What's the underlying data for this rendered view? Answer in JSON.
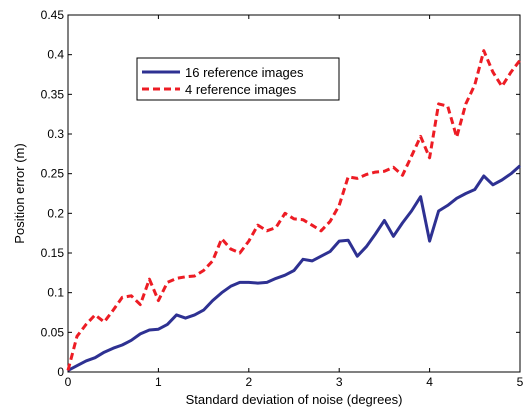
{
  "chart_data": {
    "type": "line",
    "title": "",
    "xlabel": "Standard deviation of noise (degrees)",
    "ylabel": "Position error (m)",
    "xlim": [
      0,
      5
    ],
    "ylim": [
      0,
      0.45
    ],
    "xticks": [
      0,
      1,
      2,
      3,
      4,
      5
    ],
    "xtick_labels": [
      "0",
      "1",
      "2",
      "3",
      "4",
      "5"
    ],
    "yticks": [
      0,
      0.05,
      0.1,
      0.15,
      0.2,
      0.25,
      0.3,
      0.35,
      0.4,
      0.45
    ],
    "ytick_labels": [
      "0",
      "0.05",
      "0.1",
      "0.15",
      "0.2",
      "0.25",
      "0.3",
      "0.35",
      "0.4",
      "0.45"
    ],
    "grid": false,
    "legend_position": "upper-left",
    "x": [
      0,
      0.1,
      0.2,
      0.3,
      0.4,
      0.5,
      0.6,
      0.7,
      0.8,
      0.9,
      1.0,
      1.1,
      1.2,
      1.3,
      1.4,
      1.5,
      1.6,
      1.7,
      1.8,
      1.9,
      2.0,
      2.1,
      2.2,
      2.3,
      2.4,
      2.5,
      2.6,
      2.7,
      2.8,
      2.9,
      3.0,
      3.1,
      3.2,
      3.3,
      3.4,
      3.5,
      3.6,
      3.7,
      3.8,
      3.9,
      4.0,
      4.1,
      4.2,
      4.3,
      4.4,
      4.5,
      4.6,
      4.7,
      4.8,
      4.9,
      5.0
    ],
    "series": [
      {
        "name": "16 reference images",
        "color": "#2e3192",
        "style": "solid",
        "values": [
          0.002,
          0.008,
          0.014,
          0.018,
          0.025,
          0.03,
          0.034,
          0.04,
          0.048,
          0.053,
          0.054,
          0.06,
          0.072,
          0.068,
          0.072,
          0.078,
          0.09,
          0.1,
          0.108,
          0.113,
          0.113,
          0.112,
          0.113,
          0.118,
          0.122,
          0.128,
          0.142,
          0.14,
          0.146,
          0.152,
          0.165,
          0.166,
          0.146,
          0.158,
          0.174,
          0.191,
          0.171,
          0.188,
          0.203,
          0.221,
          0.165,
          0.203,
          0.21,
          0.219,
          0.225,
          0.23,
          0.247,
          0.236,
          0.242,
          0.25,
          0.26
        ]
      },
      {
        "name": "4 reference images",
        "color": "#ed1c24",
        "style": "dashed",
        "values": [
          0.002,
          0.045,
          0.06,
          0.072,
          0.063,
          0.078,
          0.094,
          0.096,
          0.085,
          0.117,
          0.09,
          0.113,
          0.118,
          0.12,
          0.121,
          0.128,
          0.14,
          0.168,
          0.155,
          0.15,
          0.165,
          0.185,
          0.178,
          0.182,
          0.2,
          0.193,
          0.192,
          0.185,
          0.178,
          0.19,
          0.21,
          0.246,
          0.244,
          0.249,
          0.252,
          0.253,
          0.258,
          0.248,
          0.272,
          0.297,
          0.27,
          0.338,
          0.335,
          0.296,
          0.338,
          0.362,
          0.405,
          0.378,
          0.36,
          0.378,
          0.393
        ]
      }
    ]
  }
}
